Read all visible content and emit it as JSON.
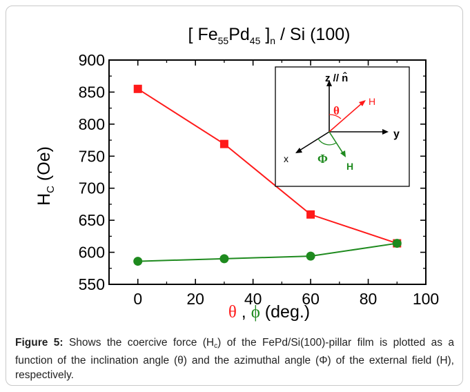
{
  "chart_data": {
    "type": "line",
    "title_parts": {
      "open": "[ Fe",
      "sub1": "55",
      "mid": "Pd",
      "sub2": "45",
      "close": " ]",
      "sub3": "n",
      "tail": " / Si (100)"
    },
    "ylabel_main": "H",
    "ylabel_sub": "C",
    "ylabel_tail": " (Oe)",
    "xlabel_theta": "θ",
    "xlabel_sep": " , ",
    "xlabel_phi": "ϕ",
    "xlabel_unit": " (deg.)",
    "xlim": [
      -10,
      100
    ],
    "ylim": [
      550,
      900
    ],
    "xticks": [
      0,
      20,
      40,
      60,
      80,
      100
    ],
    "yticks": [
      550,
      600,
      650,
      700,
      750,
      800,
      850,
      900
    ],
    "series": [
      {
        "color": "#ff1a1a",
        "marker": "square",
        "x": [
          0,
          30,
          60,
          90
        ],
        "y": [
          855,
          769,
          659,
          614
        ]
      },
      {
        "color": "#1e8a1e",
        "marker": "circle",
        "x": [
          0,
          30,
          60,
          90
        ],
        "y": [
          586,
          590,
          594,
          614
        ]
      }
    ],
    "inset": {
      "z_label": "z // n̂",
      "y_label": "y",
      "x_label": "x",
      "theta_label": "θ",
      "phi_label": "Φ",
      "H_red": "H",
      "H_green": "H"
    }
  },
  "caption": {
    "label": "Figure 5:",
    "text1": " Shows the coercive force (H",
    "sub": "c",
    "text2": ") of the FePd/Si(100)-pillar film is plotted as a function of the inclination angle (θ) and the azimuthal angle (Φ) of the external field (H), respectively."
  },
  "colors": {
    "red": "#ff1a1a",
    "green": "#1e8a1e",
    "axis": "#000000"
  }
}
